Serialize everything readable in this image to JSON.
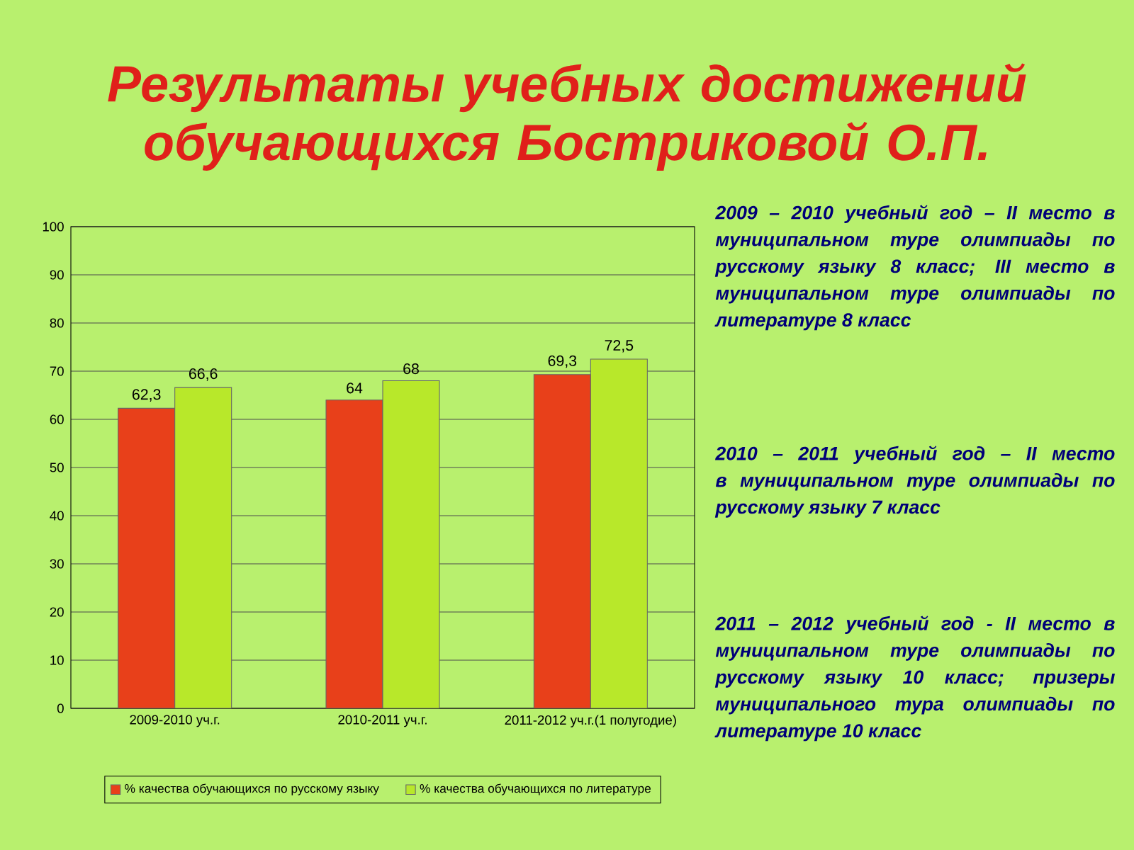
{
  "chart_data": {
    "type": "bar",
    "title": "Результаты учебных достижений обучающихся Бостриковой О.П.",
    "categories": [
      "2009-2010 уч.г.",
      "2010-2011 уч.г.",
      "2011-2012 уч.г.(1 полугодие)"
    ],
    "series": [
      {
        "name": "% качества обучающихся по русскому языку",
        "color": "#e8401a",
        "values": [
          62.3,
          64,
          69.3
        ],
        "value_labels": [
          "62,3",
          "64",
          "69,3"
        ]
      },
      {
        "name": "% качества обучающихся по литературе",
        "color": "#b8e82a",
        "values": [
          66.6,
          68,
          72.5
        ],
        "value_labels": [
          "66,6",
          "68",
          "72,5"
        ]
      }
    ],
    "ylim": [
      0,
      100
    ],
    "yticks": [
      0,
      10,
      20,
      30,
      40,
      50,
      60,
      70,
      80,
      90,
      100
    ],
    "grid": "y",
    "legend": "bottom",
    "annotations": [
      "2009 – 2010 учебный год – II место в муниципальном туре олимпиады по русскому языку 8 класс; III место в муниципальном туре олимпиады по литературе 8 класс",
      "2010 – 2011 учебный год – II место в муниципальном туре олимпиады по русскому языку 7 класс",
      "2011 – 2012 учебный год - II место в муниципальном туре олимпиады по русскому языку 10 класс; призеры муниципального тура олимпиады по литературе 10 класс"
    ]
  }
}
